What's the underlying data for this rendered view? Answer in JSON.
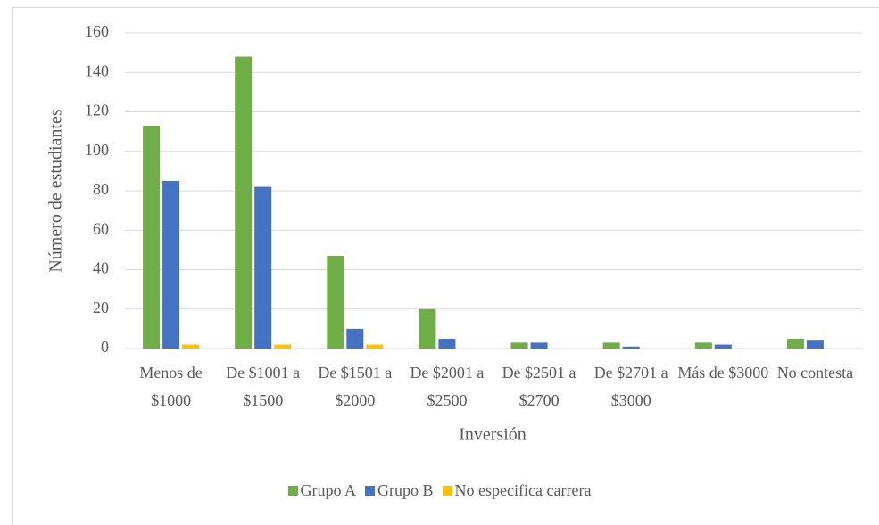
{
  "chart_data": {
    "type": "bar",
    "categories": [
      "Menos de $1000",
      "De $1001 a $1500",
      "De $1501 a $2000",
      "De $2001 a $2500",
      "De $2501 a $2700",
      "De $2701 a $3000",
      "Más de $3000",
      "No contesta"
    ],
    "series": [
      {
        "name": "Grupo A",
        "color": "#70ad47",
        "values": [
          113,
          148,
          47,
          20,
          3,
          3,
          3,
          5
        ]
      },
      {
        "name": "Grupo B",
        "color": "#4472c4",
        "values": [
          85,
          82,
          10,
          5,
          3,
          1,
          2,
          4
        ]
      },
      {
        "name": "No especifica carrera",
        "color": "#ffc000",
        "values": [
          2,
          2,
          2,
          0,
          0,
          0,
          0,
          0
        ]
      }
    ],
    "x_label": "Inversión",
    "y_label": "Número de estudiantes",
    "ylim": [
      0,
      160
    ],
    "yticks": [
      0,
      20,
      40,
      60,
      80,
      100,
      120,
      140,
      160
    ],
    "grid": true,
    "legend": "bottom"
  }
}
